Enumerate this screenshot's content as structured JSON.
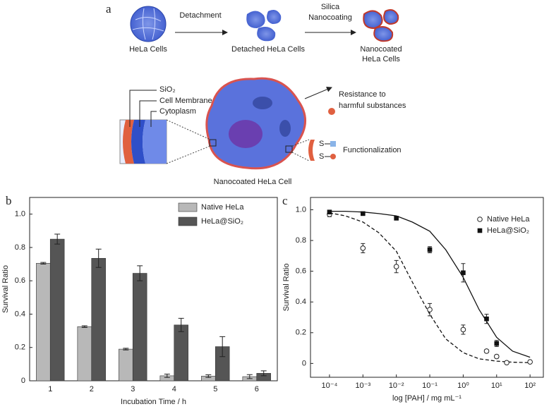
{
  "panel_a": {
    "label": "a",
    "step_1": "Detachment",
    "step_2": [
      "Silica",
      "Nanocoating"
    ],
    "cells_1": "HeLa Cells",
    "cells_2": "Detached HeLa Cells",
    "cells_3": [
      "Nanocoated",
      "HeLa Cells"
    ],
    "layers": [
      "SiO₂",
      "Cell Membrane",
      "Cytoplasm"
    ],
    "resistance": [
      "Resistance to",
      "harmful substances"
    ],
    "linkers": [
      "S",
      "S"
    ],
    "functionalization": "Functionalization",
    "cell_caption": "Nanocoated HeLa Cell"
  },
  "chart_data": [
    {
      "type": "bar",
      "label": "b",
      "x_label": "Incubation Time / h",
      "y_label": "Survival Ratio",
      "categories": [
        "1",
        "2",
        "3",
        "4",
        "5",
        "6"
      ],
      "series": [
        {
          "name": "Native HeLa",
          "color": "#b8b8b8",
          "values": [
            0.705,
            0.325,
            0.19,
            0.03,
            0.028,
            0.025
          ],
          "errors": [
            0.005,
            0.005,
            0.005,
            0.01,
            0.008,
            0.012
          ]
        },
        {
          "name": "HeLa@SiO₂",
          "color": "#555555",
          "values": [
            0.85,
            0.735,
            0.645,
            0.335,
            0.205,
            0.045
          ],
          "errors": [
            0.03,
            0.055,
            0.045,
            0.04,
            0.06,
            0.015
          ]
        }
      ],
      "ylim": [
        0,
        1.1
      ],
      "yticks": [
        0,
        0.2,
        0.4,
        0.6,
        0.8,
        {
          "value": 1,
          "label": "1.0"
        }
      ],
      "legend": "upper right"
    },
    {
      "type": "scatter",
      "label": "c",
      "x_label": "log [PAH] / mg mL⁻¹",
      "y_label": "Survival Ratio",
      "xlog": true,
      "series": [
        {
          "name": "Native HeLa",
          "marker": "open-circle",
          "color": "#222222",
          "x": [
            0.0001,
            0.001,
            0.01,
            0.1,
            1,
            5,
            10,
            20,
            100
          ],
          "values": [
            0.97,
            0.75,
            0.63,
            0.35,
            0.22,
            0.08,
            0.045,
            0.005,
            0.01
          ],
          "errors": [
            0.015,
            0.03,
            0.04,
            0.04,
            0.03,
            0.01,
            0.01,
            0.005,
            0.005
          ]
        },
        {
          "name": "HeLa@SiO₂",
          "marker": "filled-square",
          "color": "#111111",
          "x": [
            0.0001,
            0.001,
            0.01,
            0.1,
            1,
            5,
            10
          ],
          "values": [
            0.985,
            0.975,
            0.945,
            0.74,
            0.59,
            0.29,
            0.13
          ],
          "errors": [
            0.01,
            0.01,
            0.01,
            0.02,
            0.06,
            0.03,
            0.02
          ]
        }
      ],
      "fits": [
        {
          "style": "dashed",
          "x": [
            0.0001,
            0.0003,
            0.001,
            0.003,
            0.01,
            0.03,
            0.1,
            0.3,
            1,
            3,
            10,
            30,
            100
          ],
          "values": [
            0.98,
            0.96,
            0.92,
            0.85,
            0.73,
            0.53,
            0.32,
            0.16,
            0.07,
            0.03,
            0.015,
            0.008,
            0.005
          ]
        },
        {
          "style": "solid",
          "x": [
            0.0001,
            0.0003,
            0.001,
            0.003,
            0.01,
            0.03,
            0.1,
            0.3,
            1,
            3,
            10,
            30,
            100
          ],
          "values": [
            0.99,
            0.99,
            0.985,
            0.975,
            0.96,
            0.92,
            0.86,
            0.74,
            0.56,
            0.35,
            0.17,
            0.08,
            0.04
          ]
        }
      ],
      "xlim": [
        2.7e-05,
        250
      ],
      "ylim": [
        -0.09,
        1.08
      ],
      "xticks": [
        {
          "value": 0.0001,
          "label": "10⁻⁴"
        },
        {
          "value": 0.001,
          "label": "10⁻³"
        },
        {
          "value": 0.01,
          "label": "10⁻²"
        },
        {
          "value": 0.1,
          "label": "10⁻¹"
        },
        {
          "value": 1,
          "label": "10⁰"
        },
        {
          "value": 10,
          "label": "10¹"
        },
        {
          "value": 100,
          "label": "10²"
        }
      ],
      "yticks": [
        0,
        0.2,
        0.4,
        0.6,
        0.8,
        {
          "value": 1,
          "label": "1.0"
        }
      ],
      "legend": "upper right"
    }
  ]
}
